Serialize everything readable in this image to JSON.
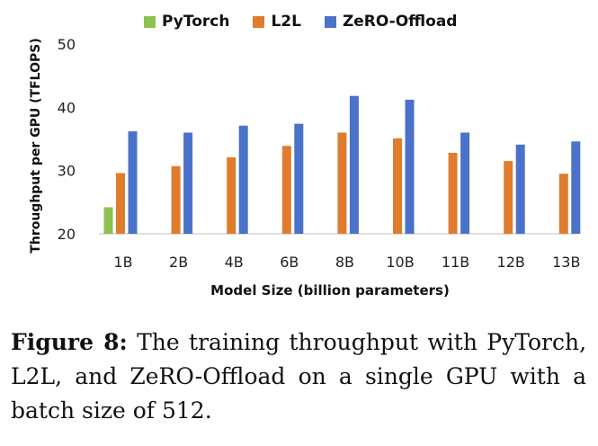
{
  "chart_data": {
    "type": "bar",
    "categories": [
      "1B",
      "2B",
      "4B",
      "6B",
      "8B",
      "10B",
      "11B",
      "12B",
      "13B"
    ],
    "series": [
      {
        "name": "PyTorch",
        "color": "#8dc24f",
        "values": [
          24.2,
          null,
          null,
          null,
          null,
          null,
          null,
          null,
          null
        ]
      },
      {
        "name": "L2L",
        "color": "#e07c2e",
        "values": [
          29.6,
          30.7,
          32.1,
          33.9,
          36.0,
          35.1,
          32.8,
          31.5,
          29.5
        ]
      },
      {
        "name": "ZeRO-Offload",
        "color": "#4a72c8",
        "values": [
          36.2,
          36.0,
          37.1,
          37.4,
          41.8,
          41.2,
          36.0,
          34.1,
          34.6
        ]
      }
    ],
    "xlabel": "Model Size (billion parameters)",
    "ylabel": "Throughput per GPU (TFLOPS)",
    "ylim": [
      20,
      50
    ],
    "yticks": [
      20,
      30,
      40,
      50
    ],
    "legend_position": "top",
    "grid": false
  },
  "caption": {
    "label": "Figure 8:",
    "text": "The training throughput with PyTorch, L2L, and ZeRO-Offload on a single GPU with a batch size of 512."
  }
}
